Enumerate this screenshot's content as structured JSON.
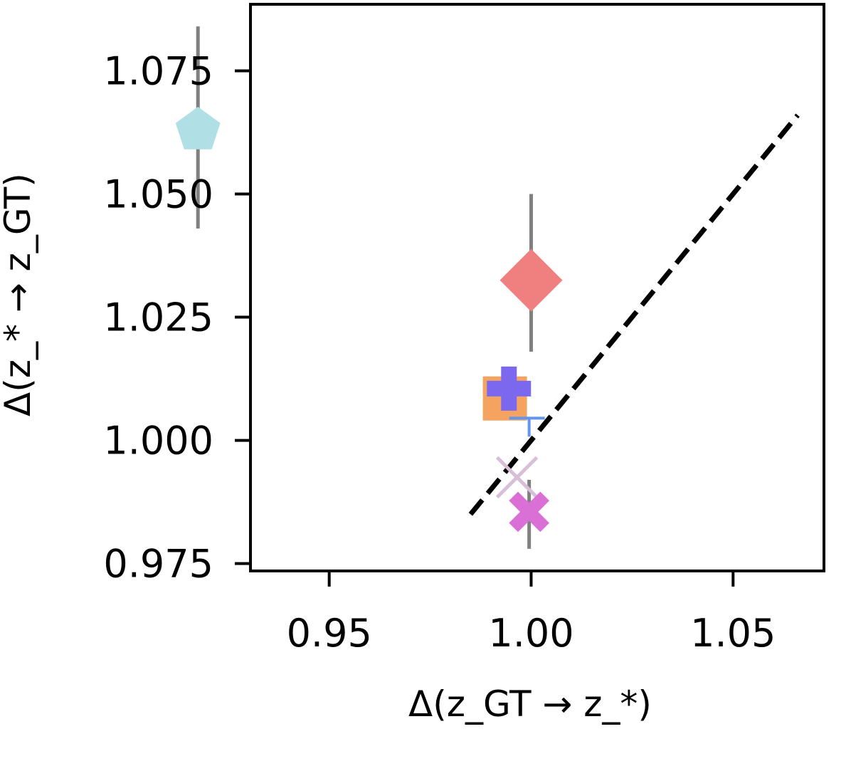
{
  "chart_data": {
    "type": "scatter",
    "title": "",
    "xlabel": "Δ(z_GT → z_*)",
    "ylabel": "Δ(z_* → z_GT)",
    "xlim": [
      0.9305,
      1.0725
    ],
    "ylim": [
      0.9735,
      1.0885
    ],
    "xticks": [
      0.95,
      1.0,
      1.05
    ],
    "xtick_labels": [
      "0.95",
      "1.00",
      "1.05"
    ],
    "yticks": [
      0.975,
      1.0,
      1.025,
      1.05,
      1.075
    ],
    "ytick_labels": [
      "0.975",
      "1.000",
      "1.025",
      "1.050",
      "1.075"
    ],
    "grid": false,
    "legend": "none",
    "reference_line": {
      "style": "dashed",
      "color": "#000000",
      "x": [
        0.985,
        1.066
      ],
      "y": [
        0.985,
        1.066
      ]
    },
    "points": [
      {
        "marker": "pentagon",
        "color": "#b0e0e6",
        "x": 0.9175,
        "y": 1.0635,
        "yerr": [
          0.0205,
          0.0205
        ]
      },
      {
        "marker": "diamond",
        "color": "#f08080",
        "x": 1.0,
        "y": 1.0325,
        "yerr": [
          0.0145,
          0.0175
        ]
      },
      {
        "marker": "square",
        "color": "#f4a460",
        "x": 0.9935,
        "y": 1.0085,
        "yerr": [
          0.0,
          0.0
        ]
      },
      {
        "marker": "plus",
        "color": "#7b68ee",
        "x": 0.9945,
        "y": 1.0105,
        "yerr": [
          0.0,
          0.0
        ]
      },
      {
        "marker": "tri",
        "color": "#6495ed",
        "x": 0.9995,
        "y": 1.0045,
        "yerr": [
          0.0,
          0.0
        ]
      },
      {
        "marker": "x",
        "color": "#d8bfd8",
        "x": 0.9965,
        "y": 0.9925,
        "yerr": [
          0.0,
          0.0
        ]
      },
      {
        "marker": "x-filled",
        "color": "#da70d6",
        "x": 0.9995,
        "y": 0.9855,
        "yerr": [
          0.0075,
          0.0065
        ]
      }
    ]
  }
}
